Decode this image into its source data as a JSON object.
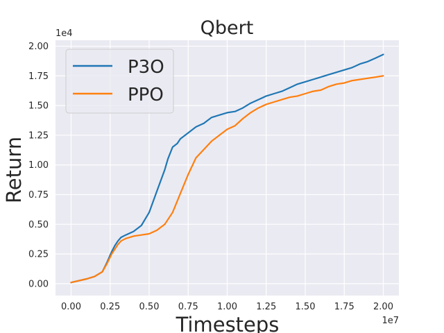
{
  "chart_data": {
    "type": "line",
    "title": "Qbert",
    "xlabel": "Timesteps",
    "ylabel": "Return",
    "x_multiplier_label": "1e7",
    "y_multiplier_label": "1e4",
    "xlim": [
      -0.1,
      2.1
    ],
    "ylim": [
      -0.1,
      2.05
    ],
    "x_ticks": [
      0.0,
      0.25,
      0.5,
      0.75,
      1.0,
      1.25,
      1.5,
      1.75,
      2.0
    ],
    "x_tick_labels": [
      "0.00",
      "0.25",
      "0.50",
      "0.75",
      "1.00",
      "1.25",
      "1.50",
      "1.75",
      "2.00"
    ],
    "y_ticks": [
      0.0,
      0.25,
      0.5,
      0.75,
      1.0,
      1.25,
      1.5,
      1.75,
      2.0
    ],
    "y_tick_labels": [
      "0.00",
      "0.25",
      "0.50",
      "0.75",
      "1.00",
      "1.25",
      "1.50",
      "1.75",
      "2.00"
    ],
    "grid": true,
    "legend_position": "top-left",
    "series": [
      {
        "name": "P3O",
        "color": "#1f77b4",
        "x": [
          0.0,
          0.1,
          0.15,
          0.2,
          0.23,
          0.26,
          0.28,
          0.3,
          0.32,
          0.35,
          0.4,
          0.45,
          0.5,
          0.55,
          0.6,
          0.62,
          0.65,
          0.68,
          0.7,
          0.75,
          0.8,
          0.85,
          0.9,
          0.95,
          1.0,
          1.05,
          1.1,
          1.15,
          1.2,
          1.25,
          1.3,
          1.35,
          1.4,
          1.45,
          1.5,
          1.55,
          1.6,
          1.65,
          1.7,
          1.75,
          1.8,
          1.85,
          1.9,
          1.95,
          2.0
        ],
        "y": [
          0.01,
          0.04,
          0.06,
          0.1,
          0.18,
          0.27,
          0.32,
          0.36,
          0.39,
          0.41,
          0.44,
          0.49,
          0.6,
          0.78,
          0.96,
          1.05,
          1.15,
          1.18,
          1.22,
          1.27,
          1.32,
          1.35,
          1.4,
          1.42,
          1.44,
          1.45,
          1.48,
          1.52,
          1.55,
          1.58,
          1.6,
          1.62,
          1.65,
          1.68,
          1.7,
          1.72,
          1.74,
          1.76,
          1.78,
          1.8,
          1.82,
          1.85,
          1.87,
          1.9,
          1.93
        ]
      },
      {
        "name": "PPO",
        "color": "#ff7f0e",
        "x": [
          0.0,
          0.1,
          0.15,
          0.2,
          0.23,
          0.26,
          0.28,
          0.3,
          0.32,
          0.35,
          0.4,
          0.45,
          0.5,
          0.55,
          0.6,
          0.65,
          0.7,
          0.75,
          0.8,
          0.85,
          0.9,
          0.95,
          1.0,
          1.05,
          1.1,
          1.15,
          1.2,
          1.25,
          1.3,
          1.35,
          1.4,
          1.45,
          1.5,
          1.55,
          1.6,
          1.65,
          1.7,
          1.75,
          1.8,
          1.85,
          1.9,
          1.95,
          2.0
        ],
        "y": [
          0.01,
          0.04,
          0.06,
          0.1,
          0.17,
          0.25,
          0.29,
          0.33,
          0.36,
          0.38,
          0.4,
          0.41,
          0.42,
          0.45,
          0.5,
          0.6,
          0.76,
          0.92,
          1.06,
          1.13,
          1.2,
          1.25,
          1.3,
          1.33,
          1.39,
          1.44,
          1.48,
          1.51,
          1.53,
          1.55,
          1.57,
          1.58,
          1.6,
          1.62,
          1.63,
          1.66,
          1.68,
          1.69,
          1.71,
          1.72,
          1.73,
          1.74,
          1.75
        ]
      }
    ]
  }
}
